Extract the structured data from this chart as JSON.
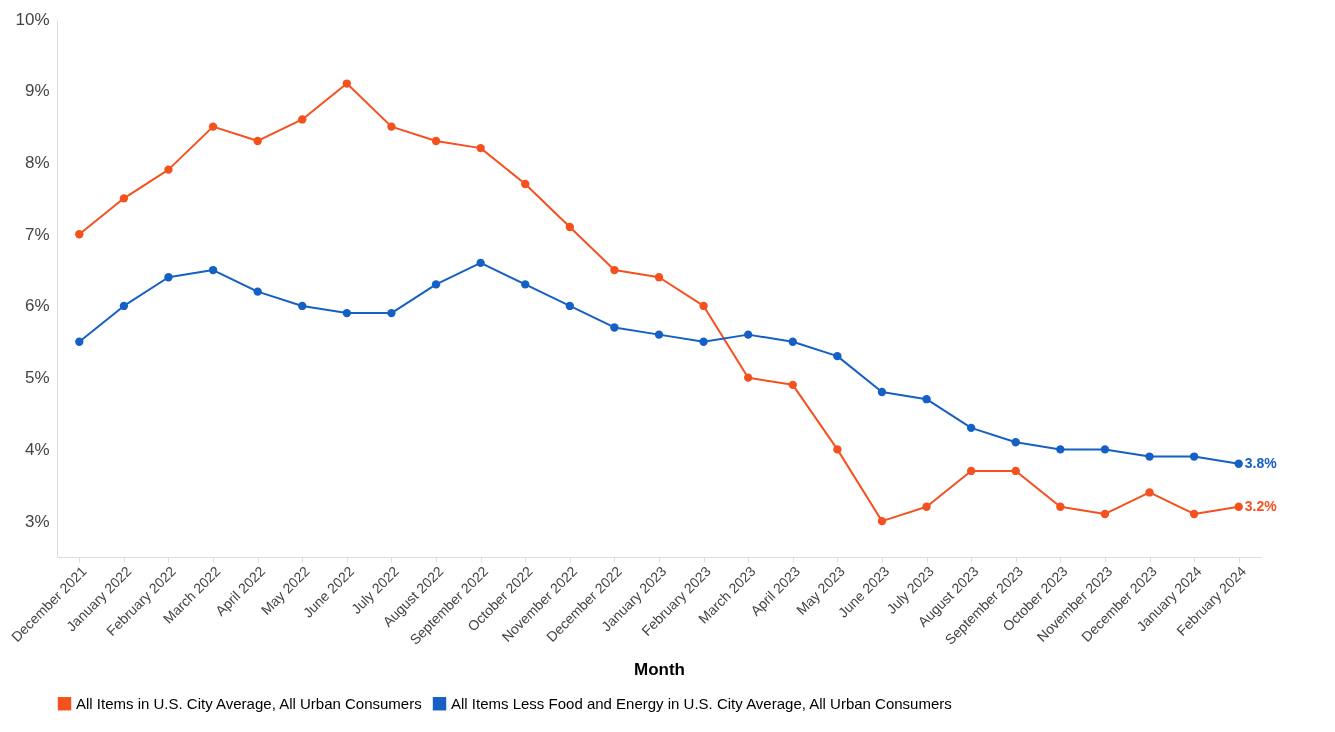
{
  "chart_data": {
    "type": "line",
    "xlabel": "Month",
    "categories": [
      "December 2021",
      "January 2022",
      "February 2022",
      "March 2022",
      "April 2022",
      "May 2022",
      "June 2022",
      "July 2022",
      "August 2022",
      "September 2022",
      "October 2022",
      "November 2022",
      "December 2022",
      "January 2023",
      "February 2023",
      "March 2023",
      "April 2023",
      "May 2023",
      "June 2023",
      "July 2023",
      "August 2023",
      "September 2023",
      "October 2023",
      "November 2023",
      "December 2023",
      "January 2024",
      "February 2024"
    ],
    "series": [
      {
        "name": "All Items in U.S. City Average, All Urban Consumers",
        "color": "#f4511e",
        "values": [
          7.0,
          7.5,
          7.9,
          8.5,
          8.3,
          8.6,
          9.1,
          8.5,
          8.3,
          8.2,
          7.7,
          7.1,
          6.5,
          6.4,
          6.0,
          5.0,
          4.9,
          4.0,
          3.0,
          3.2,
          3.7,
          3.7,
          3.2,
          3.1,
          3.4,
          3.1,
          3.2
        ],
        "value_labels": [
          null,
          null,
          null,
          null,
          null,
          null,
          null,
          null,
          null,
          null,
          null,
          null,
          null,
          null,
          null,
          null,
          null,
          null,
          null,
          null,
          null,
          null,
          null,
          null,
          null,
          null,
          "3.2%"
        ]
      },
      {
        "name": "All Items Less Food and Energy in U.S. City Average, All Urban Consumers",
        "color": "#1560c4",
        "values": [
          5.5,
          6.0,
          6.4,
          6.5,
          6.2,
          6.0,
          5.9,
          5.9,
          6.3,
          6.6,
          6.3,
          6.0,
          5.7,
          5.6,
          5.5,
          5.6,
          5.5,
          5.3,
          4.8,
          4.7,
          4.3,
          4.1,
          4.0,
          4.0,
          3.9,
          3.9,
          3.8
        ],
        "value_labels": [
          null,
          null,
          null,
          null,
          null,
          null,
          null,
          null,
          null,
          null,
          null,
          null,
          null,
          null,
          null,
          null,
          null,
          null,
          null,
          null,
          null,
          null,
          null,
          null,
          null,
          null,
          "3.8%"
        ]
      }
    ],
    "ylim": [
      2.5,
      10
    ],
    "yticks": [
      {
        "value": 3,
        "label": "3%"
      },
      {
        "value": 4,
        "label": "4%"
      },
      {
        "value": 5,
        "label": "5%"
      },
      {
        "value": 6,
        "label": "6%"
      },
      {
        "value": 7,
        "label": "7%"
      },
      {
        "value": 8,
        "label": "8%"
      },
      {
        "value": 9,
        "label": "9%"
      },
      {
        "value": 10,
        "label": "10%"
      }
    ],
    "grid": false,
    "legend": "bottom",
    "marker": "circle",
    "line_style": "solid"
  }
}
